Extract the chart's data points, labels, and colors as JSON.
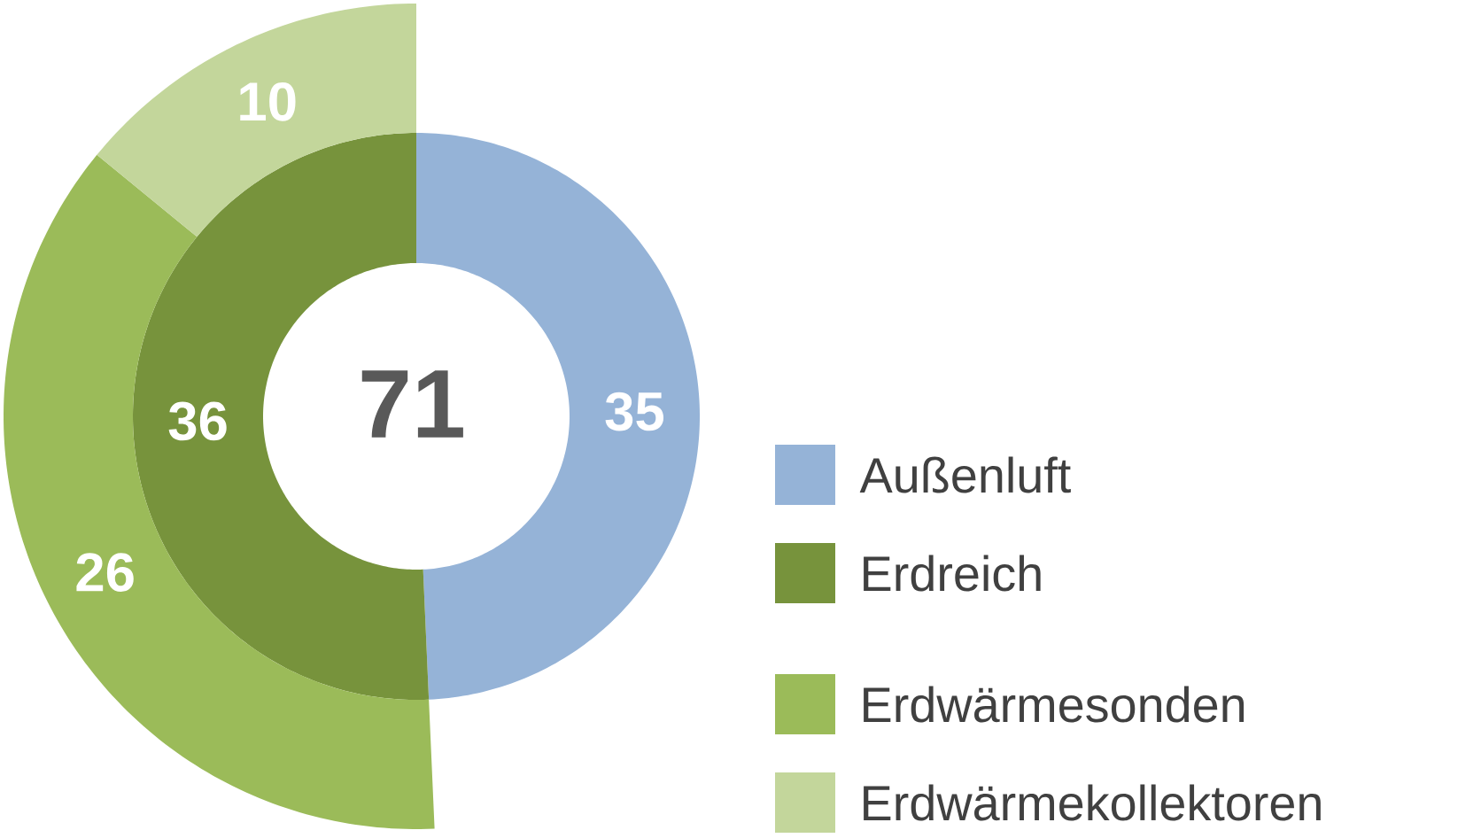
{
  "chart_data": {
    "type": "donut",
    "categories": [
      "Außenluft",
      "Erdreich",
      "Erdwärmesonden",
      "Erdwärmekollektoren"
    ],
    "colors": [
      "#95b3d7",
      "#77933c",
      "#9bbb59",
      "#c3d69b"
    ],
    "series": [
      {
        "values": [
          35,
          36,
          null,
          null
        ]
      },
      {
        "values": [
          null,
          null,
          26,
          10
        ]
      }
    ],
    "annotations": [
      "71"
    ],
    "data_labels": true,
    "legend": "right"
  }
}
